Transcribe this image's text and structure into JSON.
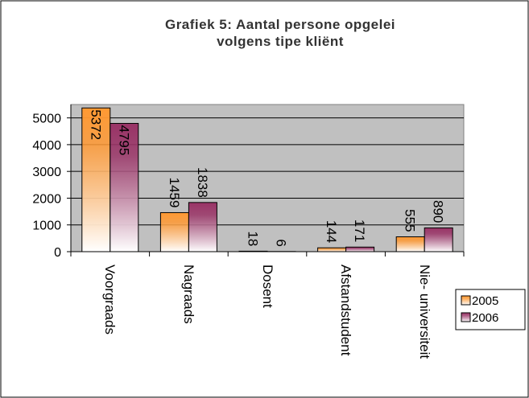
{
  "chart_data": {
    "type": "bar",
    "title": "Grafiek 5: Aantal persone opgelei volgens tipe kliënt",
    "categories": [
      "Voorgraads",
      "Nagraads",
      "Dosent",
      "Afstandstudent",
      "Nie- universiteit"
    ],
    "series": [
      {
        "name": "2005",
        "color": "#ff9933",
        "values": [
          5372,
          1459,
          18,
          144,
          555
        ]
      },
      {
        "name": "2006",
        "color": "#993366",
        "values": [
          4795,
          1838,
          6,
          171,
          890
        ]
      }
    ],
    "ylim": [
      0,
      5500
    ],
    "yticks": [
      0,
      1000,
      2000,
      3000,
      4000,
      5000
    ],
    "grid": true,
    "legend": "right"
  }
}
